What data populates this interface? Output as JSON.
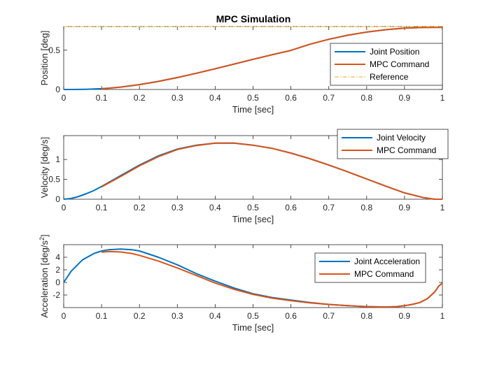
{
  "figure": {
    "title": "MPC Simulation"
  },
  "chart_data": [
    {
      "type": "line",
      "title": "MPC Simulation",
      "xlabel": "Time [sec]",
      "ylabel": "Position [deg]",
      "xlim": [
        0,
        1
      ],
      "ylim": [
        0,
        0.8
      ],
      "xticks": [
        0,
        0.1,
        0.2,
        0.3,
        0.4,
        0.5,
        0.6,
        0.7,
        0.8,
        0.9,
        1
      ],
      "xtick_labels": [
        "0",
        "0.1",
        "0.2",
        "0.3",
        "0.4",
        "0.5",
        "0.6",
        "0.7",
        "0.8",
        "0.9",
        "1"
      ],
      "yticks": [
        0,
        0.5
      ],
      "ytick_labels": [
        "0",
        "0.5"
      ],
      "legend_position": "right",
      "series": [
        {
          "name": "Joint Position",
          "color": "#0072BD",
          "style": "solid",
          "x": [
            0,
            0.02,
            0.04,
            0.06,
            0.08,
            0.1,
            0.12,
            0.15,
            0.2,
            0.25,
            0.3,
            0.35,
            0.4,
            0.45,
            0.5,
            0.55,
            0.6,
            0.65,
            0.7,
            0.75,
            0.8,
            0.85,
            0.9,
            0.95,
            1
          ],
          "y": [
            0,
            0.0003,
            0.001,
            0.003,
            0.006,
            0.01,
            0.017,
            0.03,
            0.062,
            0.103,
            0.152,
            0.206,
            0.264,
            0.324,
            0.384,
            0.442,
            0.497,
            0.575,
            0.638,
            0.69,
            0.73,
            0.76,
            0.78,
            0.789,
            0.79
          ]
        },
        {
          "name": "MPC Command",
          "color": "#D95319",
          "style": "solid",
          "x": [
            0.1,
            0.12,
            0.15,
            0.2,
            0.25,
            0.3,
            0.35,
            0.4,
            0.45,
            0.5,
            0.55,
            0.6,
            0.65,
            0.7,
            0.75,
            0.8,
            0.85,
            0.9,
            0.95,
            1
          ],
          "y": [
            0.01,
            0.017,
            0.03,
            0.061,
            0.102,
            0.151,
            0.205,
            0.263,
            0.323,
            0.383,
            0.441,
            0.497,
            0.575,
            0.638,
            0.69,
            0.73,
            0.76,
            0.78,
            0.789,
            0.79
          ]
        },
        {
          "name": "Reference",
          "color": "#EDB120",
          "style": "dashdot",
          "x": [
            0,
            1
          ],
          "y": [
            0.8,
            0.8
          ]
        }
      ]
    },
    {
      "type": "line",
      "title": "",
      "xlabel": "Time [sec]",
      "ylabel": "Velocity [deg/s]",
      "xlim": [
        0,
        1
      ],
      "ylim": [
        0,
        1.6
      ],
      "xticks": [
        0,
        0.1,
        0.2,
        0.3,
        0.4,
        0.5,
        0.6,
        0.7,
        0.8,
        0.9,
        1
      ],
      "xtick_labels": [
        "0",
        "0.1",
        "0.2",
        "0.3",
        "0.4",
        "0.5",
        "0.6",
        "0.7",
        "0.8",
        "0.9",
        "1"
      ],
      "yticks": [
        0,
        0.5,
        1
      ],
      "ytick_labels": [
        "0",
        "0.5",
        "1"
      ],
      "legend_position": "top-right",
      "series": [
        {
          "name": "Joint Velocity",
          "color": "#0072BD",
          "style": "solid",
          "x": [
            0,
            0.02,
            0.04,
            0.06,
            0.08,
            0.1,
            0.15,
            0.2,
            0.25,
            0.3,
            0.35,
            0.4,
            0.45,
            0.5,
            0.55,
            0.6,
            0.65,
            0.7,
            0.75,
            0.8,
            0.85,
            0.9,
            0.95,
            0.98,
            1
          ],
          "y": [
            0,
            0.02,
            0.07,
            0.14,
            0.22,
            0.32,
            0.59,
            0.86,
            1.09,
            1.26,
            1.36,
            1.41,
            1.41,
            1.36,
            1.28,
            1.16,
            1.02,
            0.86,
            0.69,
            0.51,
            0.33,
            0.16,
            0.04,
            0,
            0
          ]
        },
        {
          "name": "MPC Command",
          "color": "#D95319",
          "style": "solid",
          "x": [
            0.1,
            0.15,
            0.2,
            0.25,
            0.3,
            0.35,
            0.4,
            0.45,
            0.5,
            0.55,
            0.6,
            0.65,
            0.7,
            0.75,
            0.8,
            0.85,
            0.9,
            0.95,
            0.98,
            1
          ],
          "y": [
            0.31,
            0.57,
            0.84,
            1.07,
            1.25,
            1.35,
            1.41,
            1.41,
            1.36,
            1.28,
            1.16,
            1.02,
            0.86,
            0.69,
            0.51,
            0.33,
            0.16,
            0.04,
            0,
            0
          ]
        }
      ]
    },
    {
      "type": "line",
      "title": "",
      "xlabel": "Time [sec]",
      "ylabel": "Acceleration [deg/s",
      "ylabel_superscript": "2",
      "ylabel_suffix": "]",
      "xlim": [
        0,
        1
      ],
      "ylim": [
        -4,
        6
      ],
      "xticks": [
        0,
        0.1,
        0.2,
        0.3,
        0.4,
        0.5,
        0.6,
        0.7,
        0.8,
        0.9,
        1
      ],
      "xtick_labels": [
        "0",
        "0.1",
        "0.2",
        "0.3",
        "0.4",
        "0.5",
        "0.6",
        "0.7",
        "0.8",
        "0.9",
        "1"
      ],
      "yticks": [
        -2,
        0,
        2,
        4
      ],
      "ytick_labels": [
        "-2",
        "0",
        "2",
        "4"
      ],
      "legend_position": "right",
      "series": [
        {
          "name": "Joint Acceleration",
          "color": "#0072BD",
          "style": "solid",
          "x": [
            0,
            0.02,
            0.05,
            0.08,
            0.1,
            0.12,
            0.15,
            0.18,
            0.2,
            0.25,
            0.3,
            0.35,
            0.4,
            0.45,
            0.5,
            0.55,
            0.6,
            0.65,
            0.7,
            0.75,
            0.8,
            0.85,
            0.88,
            0.9,
            0.92,
            0.94,
            0.96,
            0.98,
            0.99,
            1
          ],
          "y": [
            0,
            1.8,
            3.6,
            4.6,
            5.0,
            5.2,
            5.3,
            5.2,
            5.0,
            4.0,
            2.8,
            1.4,
            0.2,
            -0.9,
            -1.8,
            -2.4,
            -2.8,
            -3.2,
            -3.5,
            -3.7,
            -3.85,
            -3.9,
            -3.85,
            -3.7,
            -3.5,
            -3.2,
            -2.6,
            -1.5,
            -0.6,
            -0.1
          ]
        },
        {
          "name": "MPC Command",
          "color": "#D95319",
          "style": "solid",
          "x": [
            0.1,
            0.12,
            0.15,
            0.18,
            0.2,
            0.25,
            0.3,
            0.35,
            0.4,
            0.45,
            0.5,
            0.55,
            0.6,
            0.65,
            0.7,
            0.75,
            0.8,
            0.85,
            0.88,
            0.9,
            0.92,
            0.94,
            0.96,
            0.98,
            0.99,
            1
          ],
          "y": [
            4.8,
            4.9,
            4.85,
            4.6,
            4.3,
            3.4,
            2.3,
            1.1,
            -0.1,
            -1.1,
            -1.9,
            -2.5,
            -2.9,
            -3.25,
            -3.5,
            -3.7,
            -3.85,
            -3.9,
            -3.85,
            -3.7,
            -3.5,
            -3.2,
            -2.6,
            -1.5,
            -0.6,
            -0.1
          ]
        }
      ]
    }
  ]
}
